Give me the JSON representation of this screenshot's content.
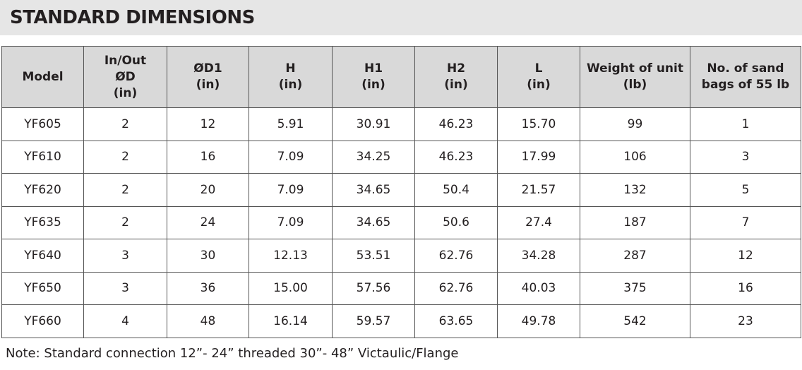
{
  "title": "STANDARD DIMENSIONS",
  "table": {
    "header": [
      [
        "Model"
      ],
      [
        "In/Out",
        "ØD",
        "(in)"
      ],
      [
        "ØD1",
        "(in)"
      ],
      [
        "H",
        "(in)"
      ],
      [
        "H1",
        "(in)"
      ],
      [
        "H2",
        "(in)"
      ],
      [
        "L",
        "(in)"
      ],
      [
        "Weight of unit",
        "(lb)"
      ],
      [
        "No. of sand",
        "bags of 55 lb"
      ]
    ],
    "rows": [
      [
        "YF605",
        "2",
        "12",
        "5.91",
        "30.91",
        "46.23",
        "15.70",
        "99",
        "1"
      ],
      [
        "YF610",
        "2",
        "16",
        "7.09",
        "34.25",
        "46.23",
        "17.99",
        "106",
        "3"
      ],
      [
        "YF620",
        "2",
        "20",
        "7.09",
        "34.65",
        "50.4",
        "21.57",
        "132",
        "5"
      ],
      [
        "YF635",
        "2",
        "24",
        "7.09",
        "34.65",
        "50.6",
        "27.4",
        "187",
        "7"
      ],
      [
        "YF640",
        "3",
        "30",
        "12.13",
        "53.51",
        "62.76",
        "34.28",
        "287",
        "12"
      ],
      [
        "YF650",
        "3",
        "36",
        "15.00",
        "57.56",
        "62.76",
        "40.03",
        "375",
        "16"
      ],
      [
        "YF660",
        "4",
        "48",
        "16.14",
        "59.57",
        "63.65",
        "49.78",
        "542",
        "23"
      ]
    ]
  },
  "note": "Note: Standard connection 12”- 24” threaded 30”- 48” Victaulic/Flange"
}
